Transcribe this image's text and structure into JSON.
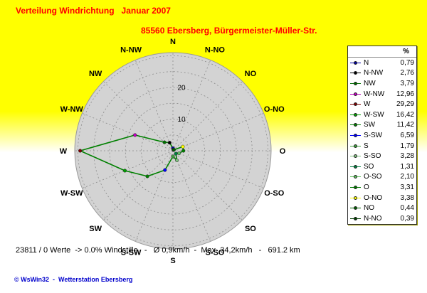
{
  "chart_data": {
    "type": "line",
    "polar": true,
    "title": "Verteilung Windrichtung   Januar 2007",
    "subtitle": "85560 Ebersberg, Bürgermeister-Müller-Str.",
    "categories": [
      "N",
      "N-NO",
      "NO",
      "O-NO",
      "O",
      "O-SO",
      "SO",
      "S-SO",
      "S",
      "S-SW",
      "SW",
      "W-SW",
      "W",
      "W-NW",
      "NW",
      "N-NW"
    ],
    "axis": {
      "unit": "%",
      "ring_values": [
        5,
        10,
        15,
        20,
        25,
        30
      ],
      "labeled_rings": [
        10,
        20
      ],
      "rmax": 31
    },
    "line_color": "#008000",
    "legend": {
      "header": "%",
      "entries": [
        {
          "label": "N",
          "value": 0.79,
          "value_text": "0,79",
          "color": "#0000a0"
        },
        {
          "label": "N-NW",
          "value": 2.76,
          "value_text": "2,76",
          "color": "#000000"
        },
        {
          "label": "NW",
          "value": 3.79,
          "value_text": "3,79",
          "color": "#007000"
        },
        {
          "label": "W-NW",
          "value": 12.96,
          "value_text": "12,96",
          "color": "#c000c0"
        },
        {
          "label": "W",
          "value": 29.29,
          "value_text": "29,29",
          "color": "#800000"
        },
        {
          "label": "W-SW",
          "value": 16.42,
          "value_text": "16,42",
          "color": "#00a000"
        },
        {
          "label": "SW",
          "value": 11.42,
          "value_text": "11,42",
          "color": "#008000"
        },
        {
          "label": "S-SW",
          "value": 6.59,
          "value_text": "6,59",
          "color": "#0000ff"
        },
        {
          "label": "S",
          "value": 1.79,
          "value_text": "1,79",
          "color": "#40a040"
        },
        {
          "label": "S-SO",
          "value": 3.28,
          "value_text": "3,28",
          "color": "#80c080"
        },
        {
          "label": "SO",
          "value": 1.31,
          "value_text": "1,31",
          "color": "#008040"
        },
        {
          "label": "O-SO",
          "value": 2.1,
          "value_text": "2,10",
          "color": "#60c060"
        },
        {
          "label": "O",
          "value": 3.31,
          "value_text": "3,31",
          "color": "#008000"
        },
        {
          "label": "O-NO",
          "value": 3.38,
          "value_text": "3,38",
          "color": "#ffff00"
        },
        {
          "label": "NO",
          "value": 0.44,
          "value_text": "0,44",
          "color": "#006000"
        },
        {
          "label": "N-NO",
          "value": 0.39,
          "value_text": "0,39",
          "color": "#004000"
        }
      ]
    }
  },
  "footer": {
    "status": "23811 / 0 Werte  -> 0.0% Windstille   -   Ø 0,9km/h  -  Max. 34,2km/h   -   691.2 km",
    "credit": "© WsWin32  -  Wetterstation Ebersberg"
  }
}
